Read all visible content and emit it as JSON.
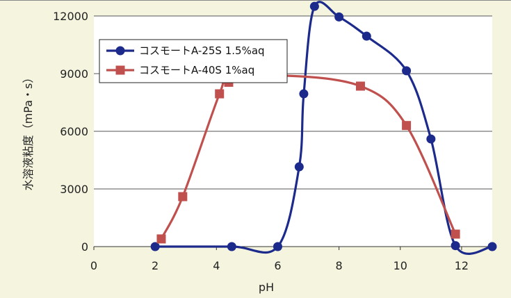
{
  "chart_data": {
    "type": "line",
    "xlabel": "pH",
    "ylabel": "水溶液粘度（mPa・s）",
    "xlim": [
      0,
      13
    ],
    "ylim": [
      0,
      12000
    ],
    "xticks": [
      "0",
      "2",
      "4",
      "6",
      "8",
      "10",
      "12"
    ],
    "yticks": [
      "0",
      "3000",
      "6000",
      "9000",
      "12000"
    ],
    "grid": "horizontal",
    "legend_position": "top-left",
    "series": [
      {
        "name": "コスモートA-25S  1.5%aq",
        "color": "#1c2a8c",
        "marker": "circle",
        "points": [
          [
            2,
            0
          ],
          [
            4.5,
            0
          ],
          [
            6,
            0
          ],
          [
            6.7,
            4150
          ],
          [
            6.85,
            7950
          ],
          [
            7.2,
            12500
          ],
          [
            8,
            11950
          ],
          [
            8.9,
            10950
          ],
          [
            10.2,
            9150
          ],
          [
            11,
            5600
          ],
          [
            11.8,
            50
          ],
          [
            13,
            0
          ]
        ]
      },
      {
        "name": "コスモートA-40S  1%aq",
        "color": "#c0504d",
        "marker": "square",
        "points": [
          [
            2.2,
            400
          ],
          [
            2.9,
            2600
          ],
          [
            4.1,
            7950
          ],
          [
            4.4,
            8550
          ],
          [
            6.1,
            8900
          ],
          [
            8.7,
            8350
          ],
          [
            10.2,
            6300
          ],
          [
            11.8,
            650
          ]
        ]
      }
    ]
  }
}
